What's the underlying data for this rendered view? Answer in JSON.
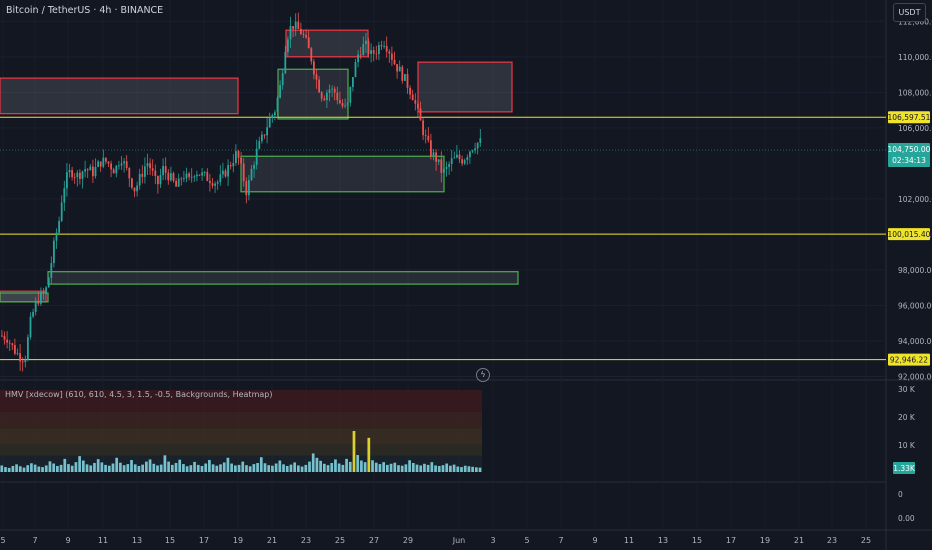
{
  "header": {
    "symbol": "Bitcoin / TetherUS · 4h · BINANCE",
    "currency": "USDT"
  },
  "indicator": {
    "legend": "HMV [xdecow] (610, 610, 4.5, 3, 1.5, -0.5, Backgrounds, Heatmap)"
  },
  "colors": {
    "background": "#131722",
    "up": "#26a69a",
    "down": "#ef5350",
    "level": "#f0e32c",
    "zone_red": "#f23645",
    "zone_green": "#4caf50",
    "volume": "#7fd3e0",
    "volume_spike": "#f0e32c"
  },
  "icons": {
    "flash": "lightning-icon"
  },
  "chart_data": [
    {
      "type": "candlestick",
      "title": "Bitcoin / TetherUS · 4h · BINANCE",
      "x_ticks": [
        "5",
        "7",
        "9",
        "11",
        "13",
        "15",
        "17",
        "19",
        "21",
        "23",
        "25",
        "27",
        "29",
        "Jun",
        "3",
        "5",
        "7",
        "9",
        "11",
        "13",
        "15",
        "17",
        "19",
        "21",
        "23",
        "25"
      ],
      "y_ticks": [
        "112,000.00",
        "110,000.00",
        "108,000.00",
        "106,000.00",
        "102,000.00",
        "100,000.00",
        "98,000.00",
        "96,000.00",
        "94,000.00",
        "92,000.00"
      ],
      "ylim": [
        91800,
        113200
      ],
      "price_path": [
        {
          "x": 0,
          "y": 94300
        },
        {
          "x": 6,
          "y": 94200
        },
        {
          "x": 12,
          "y": 93600
        },
        {
          "x": 16,
          "y": 93300
        },
        {
          "x": 20,
          "y": 93100
        },
        {
          "x": 24,
          "y": 93000
        },
        {
          "x": 30,
          "y": 95200
        },
        {
          "x": 36,
          "y": 96300
        },
        {
          "x": 42,
          "y": 96600
        },
        {
          "x": 46,
          "y": 97000
        },
        {
          "x": 50,
          "y": 98300
        },
        {
          "x": 54,
          "y": 99700
        },
        {
          "x": 58,
          "y": 100700
        },
        {
          "x": 62,
          "y": 102500
        },
        {
          "x": 66,
          "y": 103200
        },
        {
          "x": 70,
          "y": 103600
        },
        {
          "x": 76,
          "y": 103300
        },
        {
          "x": 84,
          "y": 103700
        },
        {
          "x": 92,
          "y": 103500
        },
        {
          "x": 100,
          "y": 104100
        },
        {
          "x": 106,
          "y": 104100
        },
        {
          "x": 114,
          "y": 103600
        },
        {
          "x": 120,
          "y": 104400
        },
        {
          "x": 128,
          "y": 103300
        },
        {
          "x": 134,
          "y": 102500
        },
        {
          "x": 140,
          "y": 103300
        },
        {
          "x": 146,
          "y": 104100
        },
        {
          "x": 150,
          "y": 103700
        },
        {
          "x": 156,
          "y": 102700
        },
        {
          "x": 162,
          "y": 103700
        },
        {
          "x": 168,
          "y": 103300
        },
        {
          "x": 176,
          "y": 102600
        },
        {
          "x": 182,
          "y": 103400
        },
        {
          "x": 188,
          "y": 103000
        },
        {
          "x": 194,
          "y": 103600
        },
        {
          "x": 202,
          "y": 103300
        },
        {
          "x": 210,
          "y": 103100
        },
        {
          "x": 216,
          "y": 102900
        },
        {
          "x": 222,
          "y": 103300
        },
        {
          "x": 230,
          "y": 104000
        },
        {
          "x": 236,
          "y": 104600
        },
        {
          "x": 242,
          "y": 103300
        },
        {
          "x": 246,
          "y": 102300
        },
        {
          "x": 250,
          "y": 103500
        },
        {
          "x": 256,
          "y": 104700
        },
        {
          "x": 262,
          "y": 105500
        },
        {
          "x": 268,
          "y": 106400
        },
        {
          "x": 274,
          "y": 107000
        },
        {
          "x": 280,
          "y": 108500
        },
        {
          "x": 284,
          "y": 110500
        },
        {
          "x": 288,
          "y": 111500
        },
        {
          "x": 292,
          "y": 111800
        },
        {
          "x": 296,
          "y": 111600
        },
        {
          "x": 300,
          "y": 111400
        },
        {
          "x": 304,
          "y": 111000
        },
        {
          "x": 310,
          "y": 110000
        },
        {
          "x": 316,
          "y": 108600
        },
        {
          "x": 322,
          "y": 107700
        },
        {
          "x": 328,
          "y": 108200
        },
        {
          "x": 334,
          "y": 108000
        },
        {
          "x": 340,
          "y": 107300
        },
        {
          "x": 346,
          "y": 107000
        },
        {
          "x": 352,
          "y": 109000
        },
        {
          "x": 358,
          "y": 110300
        },
        {
          "x": 364,
          "y": 110700
        },
        {
          "x": 370,
          "y": 110100
        },
        {
          "x": 376,
          "y": 110400
        },
        {
          "x": 382,
          "y": 111000
        },
        {
          "x": 388,
          "y": 110400
        },
        {
          "x": 394,
          "y": 109600
        },
        {
          "x": 400,
          "y": 109100
        },
        {
          "x": 406,
          "y": 108500
        },
        {
          "x": 412,
          "y": 107800
        },
        {
          "x": 418,
          "y": 106600
        },
        {
          "x": 424,
          "y": 105500
        },
        {
          "x": 430,
          "y": 104600
        },
        {
          "x": 436,
          "y": 104200
        },
        {
          "x": 440,
          "y": 103600
        },
        {
          "x": 444,
          "y": 103500
        },
        {
          "x": 450,
          "y": 104100
        },
        {
          "x": 456,
          "y": 104300
        },
        {
          "x": 462,
          "y": 104200
        },
        {
          "x": 468,
          "y": 104700
        },
        {
          "x": 474,
          "y": 105100
        },
        {
          "x": 480,
          "y": 105200
        }
      ],
      "zones": [
        {
          "kind": "red",
          "x0": 0,
          "x1": 238,
          "y_high": 108800,
          "y_low": 106800
        },
        {
          "kind": "red",
          "x0": 286,
          "x1": 368,
          "y_high": 111500,
          "y_low": 110000
        },
        {
          "kind": "red",
          "x0": 418,
          "x1": 512,
          "y_high": 109700,
          "y_low": 106900
        },
        {
          "kind": "red",
          "x0": 0,
          "x1": 46,
          "y_high": 96800,
          "y_low": 96200
        },
        {
          "kind": "green",
          "x0": 278,
          "x1": 348,
          "y_high": 109300,
          "y_low": 106500
        },
        {
          "kind": "green",
          "x0": 241,
          "x1": 444,
          "y_high": 104400,
          "y_low": 102400
        },
        {
          "kind": "green",
          "x0": 48,
          "x1": 518,
          "y_high": 97900,
          "y_low": 97200
        },
        {
          "kind": "green",
          "x0": 0,
          "x1": 48,
          "y_high": 96700,
          "y_low": 96200
        }
      ],
      "levels": [
        {
          "price": 106597.51,
          "label": "106,597.51"
        },
        {
          "price": 100015.4,
          "label": "100,015.40"
        },
        {
          "price": 92946.22,
          "label": "92,946.22"
        }
      ],
      "last_price": {
        "price": 104750.0,
        "label": "104,750.00",
        "countdown": "02:34:13"
      }
    },
    {
      "type": "bar",
      "title": "HMV [xdecow] (610, 610, 4.5, 3, 1.5, -0.5, Backgrounds, Heatmap)",
      "y_ticks": [
        "30 K",
        "20 K",
        "10 K",
        "0",
        "0.00"
      ],
      "ylim": [
        0,
        30000
      ],
      "last_value_label": "1.33K",
      "heatmap_bands": [
        30000,
        22000,
        16000,
        10000,
        6000
      ],
      "volumes": [
        2400,
        1800,
        1500,
        2200,
        2800,
        2100,
        1600,
        2500,
        3200,
        2700,
        2000,
        1800,
        2400,
        3900,
        3100,
        2200,
        2600,
        4800,
        2900,
        2300,
        3600,
        5800,
        4200,
        2800,
        2400,
        3300,
        4700,
        3500,
        2600,
        2300,
        3100,
        5200,
        3400,
        2500,
        2900,
        4400,
        2800,
        2200,
        2700,
        3800,
        4600,
        3000,
        2400,
        2700,
        6100,
        3800,
        2600,
        3300,
        4500,
        2900,
        2100,
        2500,
        3700,
        2600,
        2200,
        3100,
        4400,
        2800,
        2300,
        2800,
        3500,
        5200,
        3100,
        2400,
        2600,
        3800,
        2500,
        2100,
        2900,
        3300,
        5400,
        3200,
        2500,
        2300,
        3100,
        4200,
        2800,
        2200,
        2700,
        3500,
        2400,
        2000,
        2600,
        3800,
        6800,
        5200,
        4100,
        3000,
        2500,
        3300,
        4600,
        3100,
        2600,
        4800,
        3700,
        15000,
        6200,
        4200,
        3600,
        12500,
        4300,
        3400,
        2900,
        3600,
        2600,
        3000,
        3400,
        2500,
        2300,
        2800,
        4300,
        3300,
        2700,
        2400,
        3000,
        2600,
        3600,
        2400,
        2200,
        2500,
        3100,
        2300,
        2700,
        2000,
        1800,
        2300,
        2100,
        1900,
        1700,
        1600
      ]
    }
  ]
}
